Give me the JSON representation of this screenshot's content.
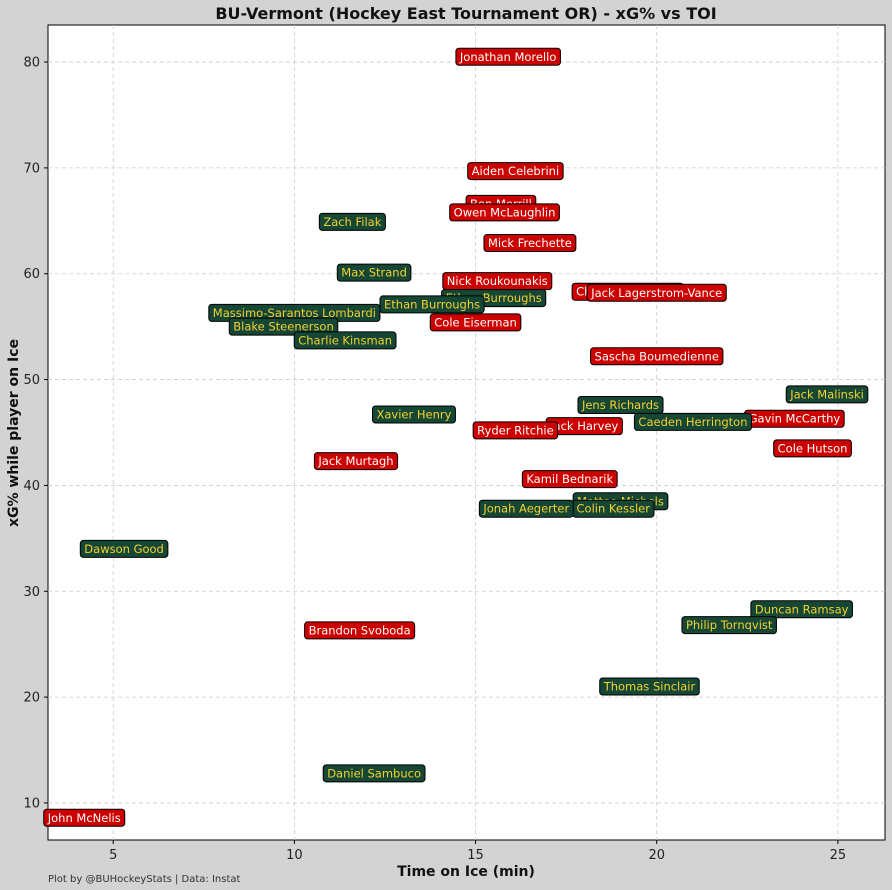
{
  "chart_data": {
    "type": "scatter",
    "title": "BU-Vermont (Hockey East Tournament OR) - xG% vs TOI",
    "xlabel": "Time on Ice (min)",
    "ylabel": "xG% while player on Ice",
    "xlim": [
      3.2,
      26.3
    ],
    "ylim": [
      6.5,
      83.5
    ],
    "xticks": [
      5,
      10,
      15,
      20,
      25
    ],
    "yticks": [
      10,
      20,
      30,
      40,
      50,
      60,
      70,
      80
    ],
    "grid": true,
    "credit": "Plot by @BUHockeyStats | Data: Instat",
    "colors": {
      "background": "#d3d3d3",
      "plot_area": "#ffffff",
      "grid": "#cccccc",
      "bu_fill": "#cc0000",
      "bu_text": "#ffffff",
      "uvm_fill": "#154734",
      "uvm_text": "#f5d130"
    },
    "series": [
      {
        "team": "bu",
        "points": [
          {
            "name": "Jonathan Morello",
            "x": 15.9,
            "y": 80.5
          },
          {
            "name": "Aiden Celebrini",
            "x": 16.1,
            "y": 69.7
          },
          {
            "name": "Ben Merrill",
            "x": 15.7,
            "y": 66.6
          },
          {
            "name": "Owen McLaughlin",
            "x": 15.8,
            "y": 65.8
          },
          {
            "name": "Mick Frechette",
            "x": 16.5,
            "y": 62.9
          },
          {
            "name": "Nick Roukounakis",
            "x": 15.6,
            "y": 59.3
          },
          {
            "name": "Charlie Trethewey",
            "x": 19.2,
            "y": 58.3
          },
          {
            "name": "Jack Lagerstrom-Vance",
            "x": 20.0,
            "y": 58.2
          },
          {
            "name": "Cole Eiserman",
            "x": 15.0,
            "y": 55.4
          },
          {
            "name": "Sascha Boumedienne",
            "x": 20.0,
            "y": 52.2
          },
          {
            "name": "Jack Harvey",
            "x": 18.0,
            "y": 45.6
          },
          {
            "name": "Ryder Ritchie",
            "x": 16.1,
            "y": 45.2
          },
          {
            "name": "Gavin McCarthy",
            "x": 23.8,
            "y": 46.3
          },
          {
            "name": "Cole Hutson",
            "x": 24.3,
            "y": 43.5
          },
          {
            "name": "Jack Murtagh",
            "x": 11.7,
            "y": 42.3
          },
          {
            "name": "Kamil Bednarik",
            "x": 17.6,
            "y": 40.6
          },
          {
            "name": "Brandon Svoboda",
            "x": 11.8,
            "y": 26.3
          },
          {
            "name": "John McNelis",
            "x": 4.2,
            "y": 8.6
          }
        ]
      },
      {
        "team": "uvm",
        "points": [
          {
            "name": "Zach Filak",
            "x": 11.6,
            "y": 64.9
          },
          {
            "name": "Max Strand",
            "x": 12.2,
            "y": 60.1
          },
          {
            "name": "Ethan Burroughs",
            "x": 15.5,
            "y": 57.7
          },
          {
            "name": "Massimo-Sarantos Lombardi",
            "x": 10.0,
            "y": 56.3
          },
          {
            "name": "Ethan Burroughs",
            "x": 13.8,
            "y": 57.1
          },
          {
            "name": "Blake Steenerson",
            "x": 9.7,
            "y": 55.0
          },
          {
            "name": "Charlie Kinsman",
            "x": 11.4,
            "y": 53.7
          },
          {
            "name": "Jack Malinski",
            "x": 24.7,
            "y": 48.6
          },
          {
            "name": "Jens Richards",
            "x": 19.0,
            "y": 47.6
          },
          {
            "name": "Caeden Herrington",
            "x": 21.0,
            "y": 46.0
          },
          {
            "name": "Xavier Henry",
            "x": 13.3,
            "y": 46.7
          },
          {
            "name": "Matteo Michels",
            "x": 19.0,
            "y": 38.5
          },
          {
            "name": "Colin Kessler",
            "x": 18.8,
            "y": 37.8
          },
          {
            "name": "Jonah Aegerter",
            "x": 16.4,
            "y": 37.8
          },
          {
            "name": "Dawson Good",
            "x": 5.3,
            "y": 34.0
          },
          {
            "name": "Duncan Ramsay",
            "x": 24.0,
            "y": 28.3
          },
          {
            "name": "Philip Tornqvist",
            "x": 22.0,
            "y": 26.8
          },
          {
            "name": "Thomas Sinclair",
            "x": 19.8,
            "y": 21.0
          },
          {
            "name": "Daniel Sambuco",
            "x": 12.2,
            "y": 12.8
          }
        ]
      }
    ]
  }
}
